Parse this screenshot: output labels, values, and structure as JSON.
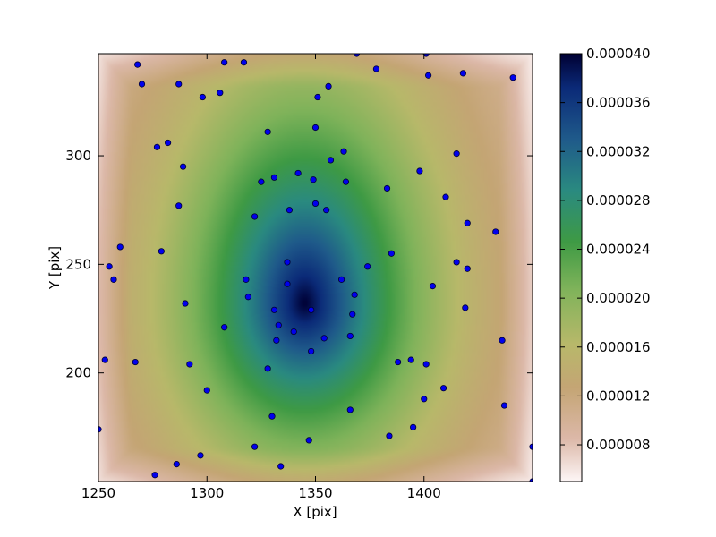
{
  "chart_data": {
    "type": "heatmap",
    "xlabel": "X [pix]",
    "ylabel": "Y [pix]",
    "xlim": [
      1250,
      1450
    ],
    "ylim": [
      150,
      347
    ],
    "x_ticks": [
      "1250",
      "1300",
      "1350",
      "1400"
    ],
    "x_tick_values": [
      1250,
      1300,
      1350,
      1400
    ],
    "y_ticks": [
      "200",
      "250",
      "300"
    ],
    "y_tick_values": [
      200,
      250,
      300
    ],
    "colorbar": {
      "min": 5e-06,
      "max": 4e-05,
      "ticks": [
        "0.000008",
        "0.000012",
        "0.000016",
        "0.000020",
        "0.000024",
        "0.000028",
        "0.000032",
        "0.000036",
        "0.000040"
      ],
      "tick_values": [
        8e-06,
        1.2e-05,
        1.6e-05,
        2e-05,
        2.4e-05,
        2.8e-05,
        3.2e-05,
        3.6e-05,
        4e-05
      ],
      "colormap": "gist_earth_r"
    },
    "peak": {
      "x": 1345,
      "y": 232,
      "value": 4e-05
    },
    "points": [
      [
        1268,
        342
      ],
      [
        1270,
        333
      ],
      [
        1287,
        333
      ],
      [
        1298,
        327
      ],
      [
        1306,
        329
      ],
      [
        1308,
        343
      ],
      [
        1317,
        343
      ],
      [
        1351,
        327
      ],
      [
        1356,
        332
      ],
      [
        1369,
        347
      ],
      [
        1378,
        340
      ],
      [
        1401,
        347
      ],
      [
        1402,
        337
      ],
      [
        1418,
        338
      ],
      [
        1441,
        336
      ],
      [
        1277,
        304
      ],
      [
        1282,
        306
      ],
      [
        1289,
        295
      ],
      [
        1328,
        311
      ],
      [
        1350,
        313
      ],
      [
        1357,
        298
      ],
      [
        1363,
        302
      ],
      [
        1398,
        293
      ],
      [
        1415,
        301
      ],
      [
        1287,
        277
      ],
      [
        1325,
        288
      ],
      [
        1331,
        290
      ],
      [
        1322,
        272
      ],
      [
        1338,
        275
      ],
      [
        1342,
        292
      ],
      [
        1349,
        289
      ],
      [
        1350,
        278
      ],
      [
        1355,
        275
      ],
      [
        1364,
        288
      ],
      [
        1383,
        285
      ],
      [
        1410,
        281
      ],
      [
        1420,
        269
      ],
      [
        1433,
        265
      ],
      [
        1260,
        258
      ],
      [
        1255,
        249
      ],
      [
        1257,
        243
      ],
      [
        1279,
        256
      ],
      [
        1318,
        243
      ],
      [
        1319,
        235
      ],
      [
        1337,
        251
      ],
      [
        1337,
        241
      ],
      [
        1362,
        243
      ],
      [
        1368,
        236
      ],
      [
        1374,
        249
      ],
      [
        1385,
        255
      ],
      [
        1404,
        240
      ],
      [
        1415,
        251
      ],
      [
        1420,
        248
      ],
      [
        1419,
        230
      ],
      [
        1290,
        232
      ],
      [
        1308,
        221
      ],
      [
        1331,
        229
      ],
      [
        1333,
        222
      ],
      [
        1332,
        215
      ],
      [
        1340,
        219
      ],
      [
        1348,
        229
      ],
      [
        1354,
        216
      ],
      [
        1366,
        217
      ],
      [
        1367,
        227
      ],
      [
        1253,
        206
      ],
      [
        1267,
        205
      ],
      [
        1292,
        204
      ],
      [
        1300,
        192
      ],
      [
        1328,
        202
      ],
      [
        1348,
        210
      ],
      [
        1388,
        205
      ],
      [
        1394,
        206
      ],
      [
        1401,
        204
      ],
      [
        1400,
        188
      ],
      [
        1409,
        193
      ],
      [
        1436,
        215
      ],
      [
        1250,
        174
      ],
      [
        1286,
        158
      ],
      [
        1297,
        162
      ],
      [
        1322,
        166
      ],
      [
        1330,
        180
      ],
      [
        1334,
        157
      ],
      [
        1347,
        169
      ],
      [
        1366,
        183
      ],
      [
        1384,
        171
      ],
      [
        1395,
        175
      ],
      [
        1437,
        185
      ],
      [
        1450,
        166
      ],
      [
        1450,
        150
      ],
      [
        1276,
        153
      ]
    ]
  }
}
